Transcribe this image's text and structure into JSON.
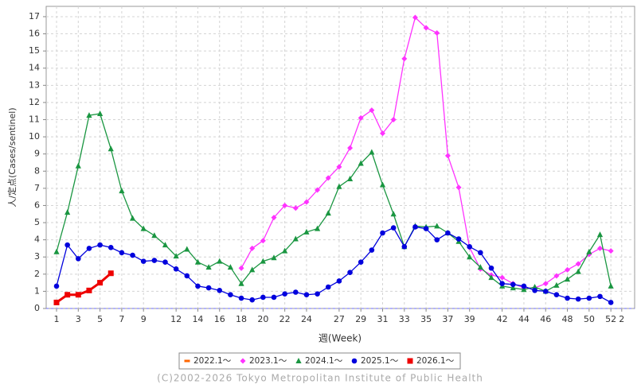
{
  "chart_data": {
    "type": "line",
    "y_label": "人/定点(Cases/sentinel)",
    "x_label": "週(Week)",
    "footer": "(C)2002-2026 Tokyo Metropolitan Institute of Public Health",
    "categories": [
      "1",
      null,
      "3",
      null,
      "5",
      null,
      "7",
      null,
      "9",
      null,
      null,
      "12",
      null,
      "14",
      null,
      "16",
      null,
      "18",
      null,
      "20",
      null,
      "22",
      null,
      "24",
      null,
      null,
      "27",
      null,
      "29",
      null,
      "31",
      null,
      "33",
      null,
      "35",
      null,
      "37",
      null,
      "39",
      null,
      null,
      "42",
      null,
      "44",
      null,
      "46",
      null,
      "48",
      null,
      "50",
      null,
      "52",
      "2"
    ],
    "ylim": [
      0,
      17.6
    ],
    "yticks": [
      0,
      1,
      2,
      3,
      4,
      5,
      6,
      7,
      8,
      9,
      10,
      11,
      12,
      13,
      14,
      15,
      16,
      17
    ],
    "grid": true,
    "series": [
      {
        "name": "2022.1～",
        "color": "#ff6600",
        "marker": "dash",
        "values": [
          null,
          null,
          null,
          null,
          null,
          null,
          null,
          null,
          null,
          null,
          null,
          null,
          null,
          null,
          null,
          null,
          null,
          null,
          null,
          null,
          null,
          null,
          null,
          null,
          null,
          null,
          null,
          null,
          null,
          null,
          null,
          null,
          null,
          null,
          null,
          null,
          null,
          null,
          null,
          null,
          null,
          null,
          null,
          null,
          null,
          null,
          null,
          null,
          null,
          null,
          null,
          null,
          null
        ]
      },
      {
        "name": "2023.1～",
        "color": "#ff33ff",
        "marker": "diamond",
        "values": [
          null,
          null,
          null,
          null,
          null,
          null,
          null,
          null,
          null,
          null,
          null,
          null,
          null,
          null,
          null,
          null,
          null,
          2.35,
          3.5,
          3.95,
          5.3,
          6.0,
          5.85,
          6.2,
          6.9,
          7.6,
          8.25,
          9.35,
          11.1,
          11.55,
          10.2,
          11.0,
          14.55,
          16.95,
          16.35,
          16.05,
          8.9,
          7.05,
          3.55,
          2.3,
          1.95,
          1.8,
          1.45,
          1.2,
          1.2,
          1.45,
          1.9,
          2.25,
          2.6,
          3.15,
          3.5,
          3.35,
          null
        ]
      },
      {
        "name": "2024.1～",
        "color": "#1a9641",
        "marker": "triangle",
        "values": [
          3.3,
          5.6,
          8.3,
          11.25,
          11.35,
          9.3,
          6.85,
          5.25,
          4.65,
          4.25,
          3.7,
          3.05,
          3.45,
          2.7,
          2.4,
          2.75,
          2.4,
          1.45,
          2.25,
          2.75,
          2.95,
          3.35,
          4.05,
          4.45,
          4.65,
          5.55,
          7.1,
          7.55,
          8.45,
          9.1,
          7.2,
          5.5,
          3.6,
          4.8,
          4.75,
          4.8,
          4.4,
          3.9,
          3.0,
          2.4,
          1.8,
          1.3,
          1.2,
          1.1,
          1.25,
          1.0,
          1.35,
          1.7,
          2.15,
          3.3,
          4.3,
          1.3,
          null
        ]
      },
      {
        "name": "2025.1～",
        "color": "#0000dd",
        "marker": "circle",
        "values": [
          1.3,
          3.7,
          2.9,
          3.5,
          3.7,
          3.55,
          3.25,
          3.1,
          2.75,
          2.8,
          2.7,
          2.3,
          1.9,
          1.3,
          1.2,
          1.05,
          0.8,
          0.6,
          0.5,
          0.65,
          0.65,
          0.85,
          0.95,
          0.8,
          0.85,
          1.25,
          1.6,
          2.1,
          2.7,
          3.4,
          4.4,
          4.7,
          3.6,
          4.75,
          4.65,
          4.0,
          4.4,
          4.05,
          3.6,
          3.25,
          2.35,
          1.45,
          1.4,
          1.3,
          1.05,
          1.0,
          0.8,
          0.6,
          0.55,
          0.6,
          0.7,
          0.35,
          null
        ]
      },
      {
        "name": "2026.1～",
        "color": "#ee0000",
        "marker": "square",
        "values": [
          0.35,
          0.8,
          0.8,
          1.05,
          1.5,
          2.05,
          null,
          null,
          null,
          null,
          null,
          null,
          null,
          null,
          null,
          null,
          null,
          null,
          null,
          null,
          null,
          null,
          null,
          null,
          null,
          null,
          null,
          null,
          null,
          null,
          null,
          null,
          null,
          null,
          null,
          null,
          null,
          null,
          null,
          null,
          null,
          null,
          null,
          null,
          null,
          null,
          null,
          null,
          null,
          null,
          null,
          null,
          null
        ]
      }
    ]
  }
}
